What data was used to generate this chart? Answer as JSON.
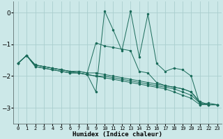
{
  "xlabel": "Humidex (Indice chaleur)",
  "bg_color": "#cce8e8",
  "grid_color": "#aacece",
  "line_color": "#1a6b5a",
  "xlim": [
    -0.5,
    23.5
  ],
  "ylim": [
    -3.5,
    0.35
  ],
  "yticks": [
    0,
    -1,
    -2,
    -3
  ],
  "xticks": [
    0,
    1,
    2,
    3,
    4,
    5,
    6,
    7,
    8,
    9,
    10,
    11,
    12,
    13,
    14,
    15,
    16,
    17,
    18,
    19,
    20,
    21,
    22,
    23
  ],
  "line_main": [
    -1.6,
    -1.35,
    -1.7,
    -1.75,
    -1.8,
    -1.85,
    -1.9,
    -1.9,
    -1.95,
    -2.5,
    0.05,
    -0.55,
    -1.2,
    0.05,
    -1.4,
    -0.05,
    -1.6,
    -1.85,
    -1.75,
    -1.8,
    -2.0,
    -2.9,
    -2.85,
    -2.9
  ],
  "line_trend1": [
    -1.6,
    -1.35,
    -1.65,
    -1.7,
    -1.75,
    -1.8,
    -1.85,
    -1.85,
    -1.9,
    -1.9,
    -1.95,
    -2.0,
    -2.05,
    -2.1,
    -2.15,
    -2.2,
    -2.25,
    -2.3,
    -2.35,
    -2.4,
    -2.5,
    -2.85,
    -2.9,
    -2.9
  ],
  "line_trend2": [
    -1.6,
    -1.35,
    -1.65,
    -1.7,
    -1.75,
    -1.8,
    -1.85,
    -1.9,
    -1.95,
    -2.0,
    -2.0,
    -2.05,
    -2.1,
    -2.15,
    -2.2,
    -2.25,
    -2.3,
    -2.35,
    -2.4,
    -2.5,
    -2.6,
    -2.85,
    -2.9,
    -2.9
  ],
  "line_trend3": [
    -1.6,
    -1.35,
    -1.7,
    -1.75,
    -1.8,
    -1.85,
    -1.9,
    -1.9,
    -1.95,
    -2.0,
    -2.05,
    -2.1,
    -2.15,
    -2.2,
    -2.25,
    -2.3,
    -2.35,
    -2.4,
    -2.5,
    -2.6,
    -2.7,
    -2.9,
    -2.9,
    -2.9
  ],
  "line_semi": [
    -1.6,
    -1.35,
    -1.65,
    -1.7,
    -1.75,
    -1.8,
    -1.85,
    -1.85,
    -1.9,
    -0.95,
    -1.05,
    -1.1,
    -1.15,
    -1.2,
    -1.85,
    -1.9,
    -2.2,
    -2.3,
    -2.35,
    -2.4,
    -2.5,
    -2.8,
    -2.9,
    -2.9
  ]
}
